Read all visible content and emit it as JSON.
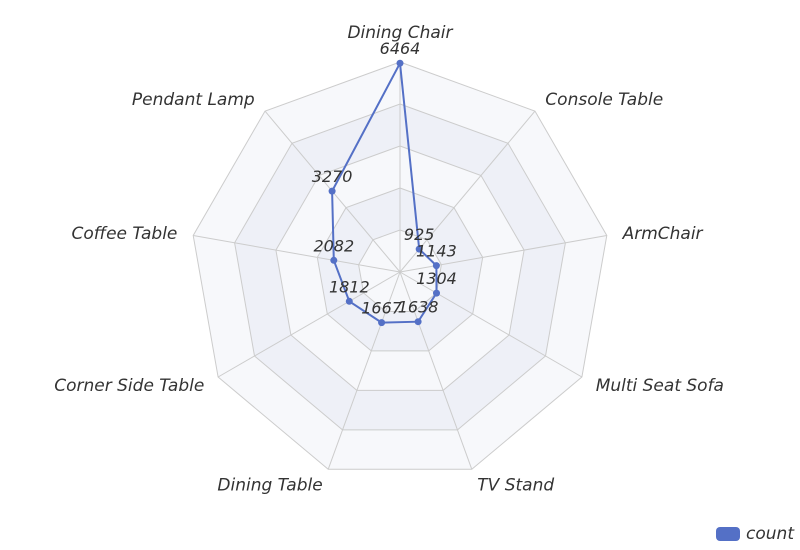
{
  "chart_data": {
    "type": "radar",
    "indicators": [
      "Dining Chair",
      "Console Table",
      "ArmChair",
      "Multi Seat Sofa",
      "TV Stand",
      "Dining Table",
      "Corner Side Table",
      "Coffee Table",
      "Pendant Lamp"
    ],
    "max": 6500,
    "series": [
      {
        "name": "count",
        "values": [
          6464,
          925,
          1143,
          1304,
          1638,
          1667,
          1812,
          2082,
          3270
        ]
      }
    ],
    "legend_position": "bottom-right",
    "colors": {
      "series": "#5470c6",
      "axis": "#cccccc",
      "band_light": "#f7f8fb",
      "band_dark": "#eef0f7"
    }
  }
}
